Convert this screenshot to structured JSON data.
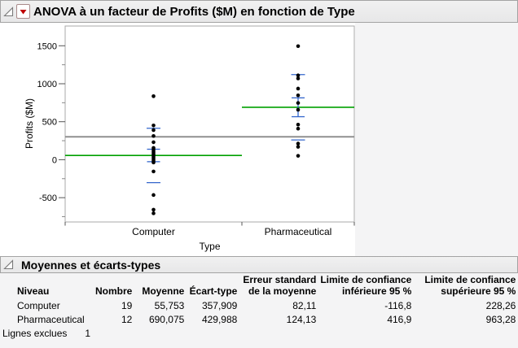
{
  "outline_sections": [
    {
      "title": "ANOVA à un facteur de Profits ($M) en fonction de Type"
    },
    {
      "title": "Moyennes et écarts-types"
    }
  ],
  "icons": {
    "disclosure_open_icon": "◿",
    "red_menu_icon": "▼"
  },
  "chart_data": {
    "type": "scatter",
    "title": "ANOVA à un facteur de Profits ($M) en fonction de Type",
    "xlabel": "Type",
    "ylabel": "Profits ($M)",
    "ylim": [
      -820,
      1760
    ],
    "yticks_major": [
      1500,
      1000,
      500,
      0,
      -500
    ],
    "yticks_minor": [
      1250,
      750,
      250,
      -250,
      -750
    ],
    "grid": false,
    "legend": "none",
    "grand_mean": 301.3,
    "categories": [
      "Computer",
      "Pharmaceutical"
    ],
    "groups": [
      {
        "name": "Computer",
        "n": 19,
        "mean": 55.753,
        "std_dev": 357.909,
        "std_err": 82.11,
        "points": [
          836,
          451,
          390,
          312,
          230,
          155,
          134,
          112,
          91,
          70,
          48,
          27,
          5,
          -16,
          -37,
          -155,
          -465,
          -658,
          -706
        ]
      },
      {
        "name": "Pharmaceutical",
        "n": 12,
        "mean": 690.075,
        "std_dev": 429.988,
        "std_err": 124.13,
        "points": [
          1495,
          1110,
          1070,
          936,
          847,
          747,
          658,
          462,
          409,
          212,
          169,
          51
        ]
      }
    ],
    "colors": {
      "mean_line": "#00A000",
      "std_marks": "#3366CC",
      "grand_mean_line": "#8F8F8F",
      "points": "#000000"
    }
  },
  "table": {
    "headers": [
      {
        "lines": [
          "Niveau"
        ],
        "align": "left"
      },
      {
        "lines": [
          "Nombre"
        ],
        "align": "right"
      },
      {
        "lines": [
          "Moyenne"
        ],
        "align": "right"
      },
      {
        "lines": [
          "Écart-type"
        ],
        "align": "right"
      },
      {
        "lines": [
          "Erreur standard",
          "de la moyenne"
        ],
        "align": "right"
      },
      {
        "lines": [
          "Limite de confiance",
          "inférieure 95 %"
        ],
        "align": "right"
      },
      {
        "lines": [
          "Limite de confiance",
          "supérieure 95 %"
        ],
        "align": "right"
      }
    ],
    "rows": [
      [
        "Computer",
        "19",
        "55,753",
        "357,909",
        "82,11",
        "-116,8",
        "228,26"
      ],
      [
        "Pharmaceutical",
        "12",
        "690,075",
        "429,988",
        "124,13",
        "416,9",
        "963,28"
      ]
    ],
    "footer": {
      "label": "Lignes exclues",
      "value": "1"
    }
  }
}
